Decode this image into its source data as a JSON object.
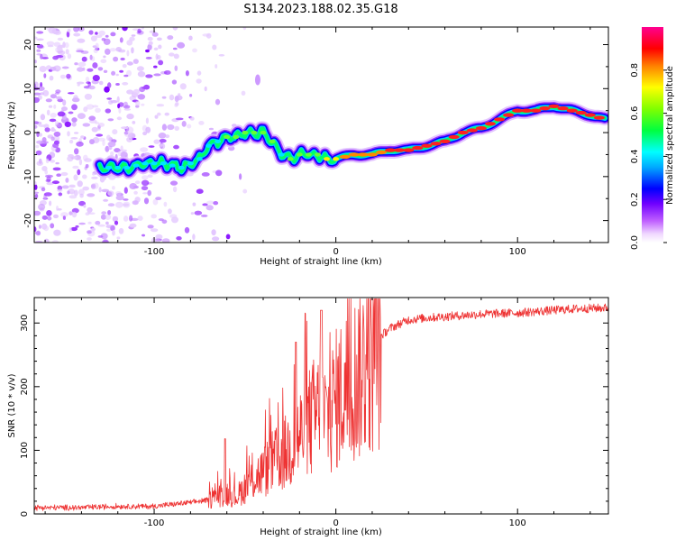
{
  "page": {
    "title": "S134.2023.188.02.35.G18"
  },
  "chart_data": [
    {
      "type": "heatmap",
      "title": "S134.2023.188.02.35.G18",
      "xlabel": "Height of straight line (km)",
      "ylabel": "Frequency (Hz)",
      "xlim": [
        -166,
        150
      ],
      "ylim": [
        -25,
        24
      ],
      "x_ticks": [
        -100,
        0,
        100
      ],
      "y_ticks": [
        -20,
        -10,
        0,
        10,
        20
      ],
      "colorbar": {
        "label": "Normalized spectral amplitude",
        "range": [
          0,
          1
        ],
        "ticks": [
          "0.0",
          "0.2",
          "0.4",
          "0.6",
          "0.8"
        ],
        "colors": [
          "#ffffff",
          "#ff00ff",
          "#8000ff",
          "#0000ff",
          "#00ffff",
          "#00ff00",
          "#ffff00",
          "#ff8000",
          "#ff0000",
          "#ff0080"
        ]
      },
      "ridge": {
        "x": [
          -130,
          -115,
          -105,
          -95,
          -85,
          -75,
          -70,
          -65,
          -60,
          -55,
          -50,
          -45,
          -40,
          -35,
          -30,
          -25,
          -20,
          -15,
          -10,
          -5,
          0,
          10,
          20,
          30,
          40,
          50,
          60,
          70,
          80,
          90,
          100,
          110,
          120,
          130,
          140,
          148
        ],
        "y": [
          -8,
          -8,
          -7,
          -7,
          -8,
          -6,
          -3,
          -2,
          -1,
          -1,
          0,
          0,
          0,
          -2,
          -5,
          -6,
          -5,
          -5,
          -5,
          -6,
          -6,
          -5,
          -5,
          -4,
          -4,
          -3,
          -2,
          0,
          1,
          3,
          5,
          5,
          6,
          5,
          4,
          3
        ],
        "peak": [
          0.25,
          0.35,
          0.45,
          0.5,
          0.5,
          0.5,
          0.55,
          0.55,
          0.6,
          0.6,
          0.65,
          0.65,
          0.7,
          0.6,
          0.55,
          0.6,
          0.65,
          0.7,
          0.7,
          0.75,
          0.8,
          0.85,
          0.85,
          0.9,
          0.9,
          0.9,
          0.9,
          0.9,
          0.92,
          0.95,
          0.95,
          0.95,
          0.95,
          0.95,
          0.95,
          0.9
        ]
      },
      "noise_region": {
        "x_range": [
          -166,
          -75
        ],
        "level": "low"
      }
    },
    {
      "type": "line",
      "xlabel": "Height of straight line (km)",
      "ylabel": "SNR (10 * v/v)",
      "xlim": [
        -166,
        150
      ],
      "ylim": [
        0,
        340
      ],
      "x_ticks": [
        -100,
        0,
        100
      ],
      "y_ticks": [
        0,
        100,
        200,
        300
      ],
      "series": [
        {
          "color": "#ee3333",
          "envelope_x": [
            -166,
            -140,
            -120,
            -100,
            -90,
            -80,
            -70,
            -65,
            -60,
            -55,
            -50,
            -45,
            -40,
            -35,
            -30,
            -25,
            -20,
            -15,
            -10,
            -5,
            0,
            5,
            10,
            15,
            20,
            25,
            30,
            40,
            50,
            60,
            70,
            80,
            90,
            100,
            110,
            120,
            130,
            140,
            150
          ],
          "envelope_y": [
            10,
            10,
            12,
            12,
            15,
            18,
            22,
            30,
            35,
            28,
            45,
            60,
            70,
            85,
            95,
            110,
            130,
            150,
            170,
            160,
            190,
            210,
            225,
            245,
            265,
            280,
            292,
            305,
            308,
            310,
            312,
            314,
            315,
            316,
            318,
            320,
            322,
            323,
            324
          ]
        }
      ]
    }
  ]
}
